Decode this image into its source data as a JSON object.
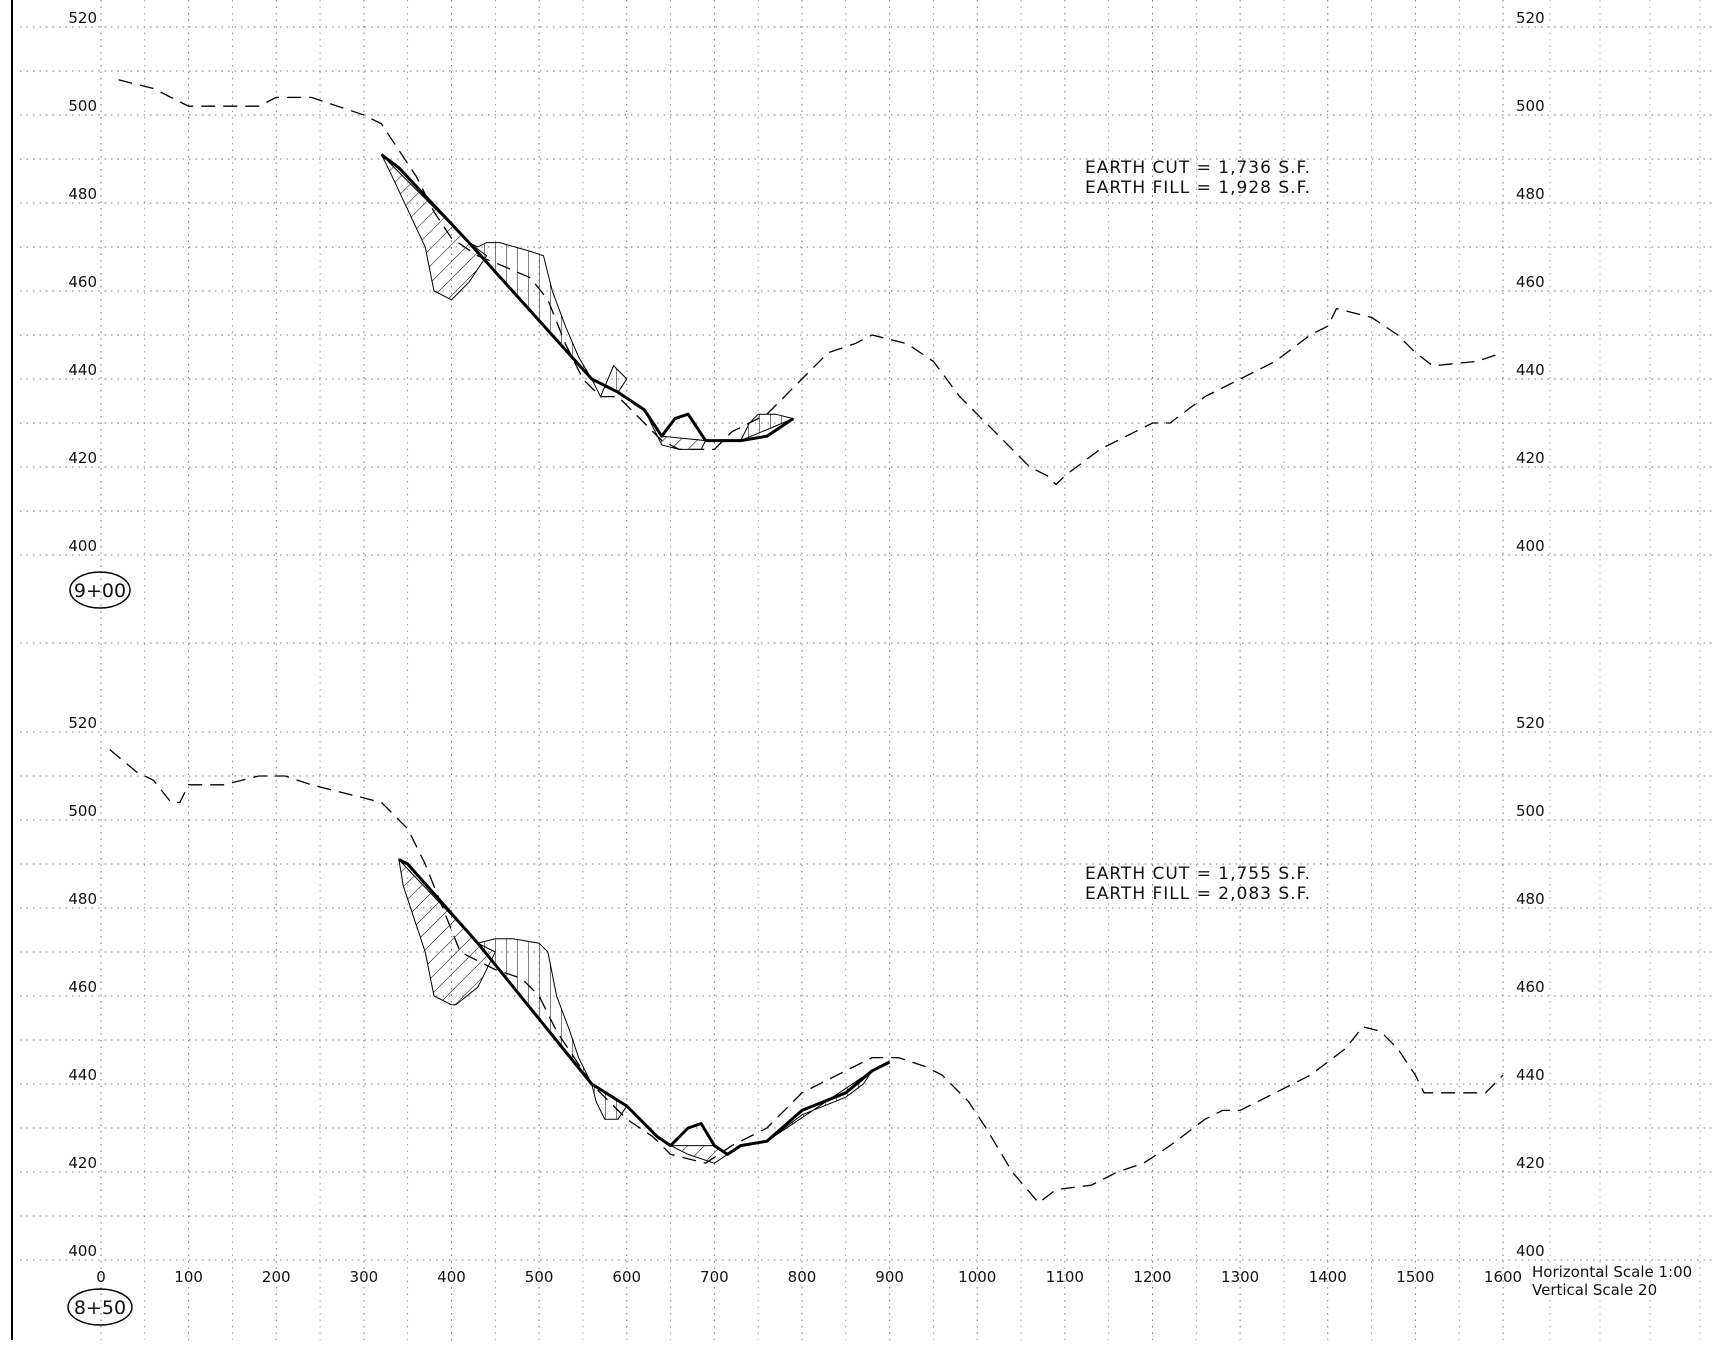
{
  "chart_data": [
    {
      "type": "line",
      "section": "9+00",
      "x_ticks": [
        0,
        100,
        200,
        300,
        400,
        500,
        600,
        700,
        800,
        900,
        1000,
        1100,
        1200,
        1300,
        1400,
        1500,
        1600
      ],
      "y_ticks": [
        400,
        420,
        440,
        460,
        480,
        500,
        520
      ],
      "xlim": [
        0,
        1600
      ],
      "ylim": [
        400,
        520
      ],
      "grid": true,
      "annotations": [
        "EARTH  CUT  =  1,736  S.F.",
        "EARTH  FILL  =  1,928  S.F."
      ],
      "existing_ground": [
        [
          20,
          508
        ],
        [
          60,
          506
        ],
        [
          100,
          502
        ],
        [
          150,
          502
        ],
        [
          180,
          502
        ],
        [
          200,
          504
        ],
        [
          240,
          504
        ],
        [
          270,
          502
        ],
        [
          300,
          500
        ],
        [
          320,
          498
        ],
        [
          340,
          492
        ],
        [
          360,
          486
        ],
        [
          380,
          478
        ],
        [
          400,
          472
        ],
        [
          430,
          468
        ],
        [
          455,
          466
        ],
        [
          490,
          463
        ],
        [
          510,
          458
        ],
        [
          530,
          448
        ],
        [
          550,
          440
        ],
        [
          570,
          436
        ],
        [
          590,
          436
        ],
        [
          620,
          430
        ],
        [
          640,
          426
        ],
        [
          660,
          424
        ],
        [
          700,
          424
        ],
        [
          720,
          428
        ],
        [
          760,
          432
        ],
        [
          790,
          438
        ],
        [
          830,
          446
        ],
        [
          860,
          448
        ],
        [
          880,
          450
        ],
        [
          920,
          448
        ],
        [
          950,
          444
        ],
        [
          980,
          436
        ],
        [
          1020,
          428
        ],
        [
          1060,
          420
        ],
        [
          1080,
          418
        ],
        [
          1090,
          416
        ],
        [
          1100,
          418
        ],
        [
          1140,
          424
        ],
        [
          1180,
          428
        ],
        [
          1200,
          430
        ],
        [
          1220,
          430
        ],
        [
          1260,
          436
        ],
        [
          1300,
          440
        ],
        [
          1340,
          444
        ],
        [
          1380,
          450
        ],
        [
          1400,
          452
        ],
        [
          1410,
          456
        ],
        [
          1450,
          454
        ],
        [
          1480,
          450
        ],
        [
          1500,
          446
        ],
        [
          1520,
          443
        ],
        [
          1570,
          444
        ],
        [
          1600,
          446
        ]
      ],
      "proposed_grade": [
        [
          320,
          491
        ],
        [
          340,
          488
        ],
        [
          420,
          471
        ],
        [
          560,
          440
        ],
        [
          590,
          437
        ],
        [
          620,
          433
        ],
        [
          640,
          427
        ],
        [
          655,
          431
        ],
        [
          670,
          432
        ],
        [
          690,
          426
        ],
        [
          730,
          426
        ],
        [
          760,
          427
        ],
        [
          790,
          431
        ]
      ],
      "cut_areas": [
        [
          [
            320,
            491
          ],
          [
            420,
            471
          ],
          [
            440,
            468
          ],
          [
            420,
            462
          ],
          [
            405,
            459
          ],
          [
            400,
            458
          ],
          [
            380,
            460
          ],
          [
            370,
            470
          ],
          [
            330,
            487
          ]
        ],
        [
          [
            620,
            433
          ],
          [
            640,
            427
          ],
          [
            690,
            426
          ],
          [
            685,
            424
          ],
          [
            660,
            424
          ],
          [
            640,
            425
          ]
        ]
      ],
      "fill_areas": [
        [
          [
            420,
            471
          ],
          [
            560,
            440
          ],
          [
            545,
            445
          ],
          [
            530,
            452
          ],
          [
            515,
            460
          ],
          [
            505,
            468
          ],
          [
            490,
            469
          ],
          [
            455,
            471
          ],
          [
            440,
            471
          ],
          [
            430,
            470
          ]
        ],
        [
          [
            560,
            440
          ],
          [
            590,
            437
          ],
          [
            600,
            440
          ],
          [
            585,
            443
          ],
          [
            570,
            436
          ]
        ],
        [
          [
            730,
            426
          ],
          [
            790,
            431
          ],
          [
            770,
            432
          ],
          [
            750,
            432
          ],
          [
            740,
            430
          ]
        ]
      ]
    },
    {
      "type": "line",
      "section": "8+50",
      "x_ticks": [
        0,
        100,
        200,
        300,
        400,
        500,
        600,
        700,
        800,
        900,
        1000,
        1100,
        1200,
        1300,
        1400,
        1500,
        1600
      ],
      "y_ticks": [
        400,
        420,
        440,
        460,
        480,
        500,
        520
      ],
      "xlim": [
        0,
        1600
      ],
      "ylim": [
        400,
        520
      ],
      "grid": true,
      "annotations": [
        "EARTH  CUT  =  1,755  S.F.",
        "EARTH  FILL  =  2,083  S.F."
      ],
      "existing_ground": [
        [
          10,
          516
        ],
        [
          40,
          511
        ],
        [
          60,
          509
        ],
        [
          80,
          504
        ],
        [
          90,
          504
        ],
        [
          100,
          508
        ],
        [
          140,
          508
        ],
        [
          180,
          510
        ],
        [
          210,
          510
        ],
        [
          240,
          508
        ],
        [
          280,
          506
        ],
        [
          320,
          504
        ],
        [
          350,
          498
        ],
        [
          370,
          490
        ],
        [
          390,
          480
        ],
        [
          410,
          470
        ],
        [
          430,
          468
        ],
        [
          450,
          466
        ],
        [
          480,
          464
        ],
        [
          500,
          460
        ],
        [
          520,
          452
        ],
        [
          540,
          446
        ],
        [
          560,
          440
        ],
        [
          580,
          436
        ],
        [
          600,
          432
        ],
        [
          630,
          428
        ],
        [
          650,
          424
        ],
        [
          690,
          422
        ],
        [
          720,
          426
        ],
        [
          760,
          430
        ],
        [
          800,
          438
        ],
        [
          840,
          442
        ],
        [
          880,
          446
        ],
        [
          910,
          446
        ],
        [
          940,
          444
        ],
        [
          960,
          442
        ],
        [
          990,
          436
        ],
        [
          1010,
          430
        ],
        [
          1040,
          420
        ],
        [
          1070,
          413
        ],
        [
          1090,
          416
        ],
        [
          1130,
          417
        ],
        [
          1160,
          420
        ],
        [
          1190,
          422
        ],
        [
          1220,
          426
        ],
        [
          1260,
          432
        ],
        [
          1280,
          434
        ],
        [
          1300,
          434
        ],
        [
          1340,
          438
        ],
        [
          1380,
          442
        ],
        [
          1420,
          448
        ],
        [
          1440,
          453
        ],
        [
          1460,
          452
        ],
        [
          1480,
          448
        ],
        [
          1500,
          442
        ],
        [
          1510,
          438
        ],
        [
          1560,
          438
        ],
        [
          1580,
          438
        ],
        [
          1600,
          442
        ]
      ],
      "proposed_grade": [
        [
          340,
          491
        ],
        [
          350,
          490
        ],
        [
          430,
          472
        ],
        [
          560,
          440
        ],
        [
          600,
          435
        ],
        [
          635,
          428
        ],
        [
          650,
          426
        ],
        [
          670,
          430
        ],
        [
          685,
          431
        ],
        [
          700,
          426
        ],
        [
          715,
          424
        ],
        [
          730,
          426
        ],
        [
          760,
          427
        ],
        [
          800,
          434
        ],
        [
          850,
          438
        ],
        [
          880,
          443
        ],
        [
          900,
          445
        ]
      ],
      "cut_areas": [
        [
          [
            340,
            491
          ],
          [
            430,
            472
          ],
          [
            450,
            470
          ],
          [
            430,
            462
          ],
          [
            405,
            458
          ],
          [
            400,
            458
          ],
          [
            380,
            460
          ],
          [
            370,
            470
          ],
          [
            345,
            485
          ]
        ],
        [
          [
            650,
            426
          ],
          [
            700,
            426
          ],
          [
            715,
            424
          ],
          [
            700,
            422
          ],
          [
            670,
            424
          ]
        ]
      ],
      "fill_areas": [
        [
          [
            430,
            472
          ],
          [
            560,
            440
          ],
          [
            545,
            446
          ],
          [
            535,
            452
          ],
          [
            520,
            460
          ],
          [
            510,
            470
          ],
          [
            500,
            472
          ],
          [
            470,
            473
          ],
          [
            450,
            473
          ]
        ],
        [
          [
            560,
            440
          ],
          [
            600,
            435
          ],
          [
            590,
            432
          ],
          [
            575,
            432
          ],
          [
            565,
            436
          ]
        ],
        [
          [
            760,
            427
          ],
          [
            880,
            443
          ],
          [
            870,
            440
          ],
          [
            850,
            437
          ],
          [
            800,
            433
          ],
          [
            780,
            430
          ]
        ]
      ]
    }
  ],
  "sheet": {
    "scale_lines": [
      "Horizontal  Scale  1:00",
      "Vertical  Scale  20"
    ]
  }
}
